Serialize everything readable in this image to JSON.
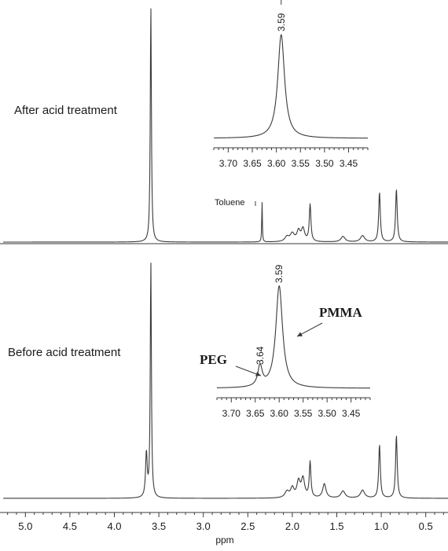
{
  "chart_data": {
    "type": "line",
    "xlabel": "ppm",
    "x_ticks": [
      "5.0",
      "4.5",
      "4.0",
      "3.5",
      "3.0",
      "2.5",
      "2.0",
      "1.5",
      "1.0",
      "0.5"
    ],
    "xlim": [
      5.25,
      0.25
    ],
    "spectra": [
      {
        "label": "After acid treatment",
        "baseline_y": 308,
        "peaks": [
          {
            "ppm": 3.59,
            "height": 300
          },
          {
            "ppm": 2.34,
            "height": 52,
            "label": "Toluene"
          },
          {
            "ppm": 2.06,
            "height": 6
          },
          {
            "ppm": 2.0,
            "height": 10
          },
          {
            "ppm": 1.93,
            "height": 13
          },
          {
            "ppm": 1.88,
            "height": 16
          },
          {
            "ppm": 1.8,
            "height": 47
          },
          {
            "ppm": 1.43,
            "height": 7
          },
          {
            "ppm": 1.21,
            "height": 8
          },
          {
            "ppm": 1.02,
            "height": 63
          },
          {
            "ppm": 0.83,
            "height": 67
          }
        ]
      },
      {
        "label": "Before acid treatment",
        "baseline_y": 634,
        "peaks": [
          {
            "ppm": 3.64,
            "height": 56
          },
          {
            "ppm": 3.59,
            "height": 300
          },
          {
            "ppm": 2.06,
            "height": 8
          },
          {
            "ppm": 2.0,
            "height": 12
          },
          {
            "ppm": 1.93,
            "height": 20
          },
          {
            "ppm": 1.88,
            "height": 24
          },
          {
            "ppm": 1.8,
            "height": 45
          },
          {
            "ppm": 1.64,
            "height": 18
          },
          {
            "ppm": 1.43,
            "height": 9
          },
          {
            "ppm": 1.21,
            "height": 10
          },
          {
            "ppm": 1.02,
            "height": 68
          },
          {
            "ppm": 0.83,
            "height": 80
          }
        ]
      }
    ],
    "insets": [
      {
        "spectrum": "After acid treatment",
        "xlim": [
          3.73,
          3.41
        ],
        "x_ticks": [
          "3.70",
          "3.65",
          "3.60",
          "3.55",
          "3.50",
          "3.45"
        ],
        "peaks": [
          {
            "ppm": 3.59,
            "height": 1.0,
            "label": "3.59"
          }
        ]
      },
      {
        "spectrum": "Before acid treatment",
        "xlim": [
          3.73,
          3.41
        ],
        "x_ticks": [
          "3.70",
          "3.65",
          "3.60",
          "3.55",
          "3.50",
          "3.45"
        ],
        "peaks": [
          {
            "ppm": 3.64,
            "height": 0.2,
            "label": "3.64"
          },
          {
            "ppm": 3.6,
            "height": 1.0,
            "label": "3.59"
          }
        ],
        "annotations": [
          "PEG",
          "PMMA"
        ]
      }
    ]
  }
}
